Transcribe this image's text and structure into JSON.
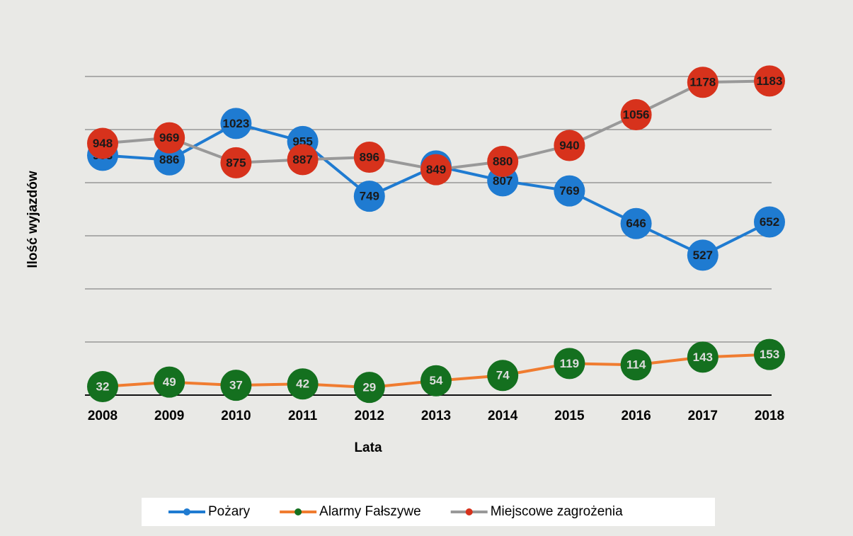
{
  "chart_data": {
    "type": "line",
    "x_label": "Lata",
    "y_label": "Ilość wyjazdów",
    "categories": [
      "2008",
      "2009",
      "2010",
      "2011",
      "2012",
      "2013",
      "2014",
      "2015",
      "2016",
      "2017",
      "2018"
    ],
    "series": [
      {
        "name": "Pożary",
        "color": "#1f7bd1",
        "marker_color": "#1f7bd1",
        "values": [
          903,
          886,
          1023,
          955,
          749,
          863,
          807,
          769,
          646,
          527,
          652
        ]
      },
      {
        "name": "Alarmy Fałszywe",
        "color": "#f07c30",
        "marker_color": "#14701f",
        "values": [
          32,
          49,
          37,
          42,
          29,
          54,
          74,
          119,
          114,
          143,
          153
        ]
      },
      {
        "name": "Miejscowe zagrożenia",
        "color": "#999999",
        "marker_color": "#d7321c",
        "values": [
          948,
          969,
          875,
          887,
          896,
          849,
          880,
          940,
          1056,
          1178,
          1183
        ]
      }
    ],
    "ylim": [
      0,
      1200
    ],
    "yticks": [
      0,
      200,
      400,
      600,
      800,
      1000,
      1200
    ],
    "grid": true,
    "legend": "bottom"
  }
}
